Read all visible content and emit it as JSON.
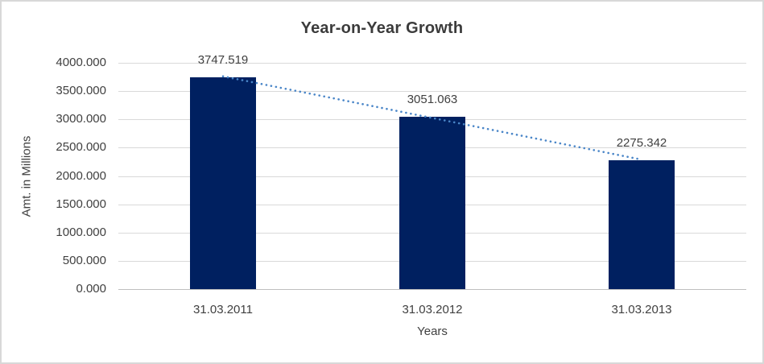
{
  "chart_data": {
    "type": "bar",
    "title": "Year-on-Year Growth",
    "xlabel": "Years",
    "ylabel": "Amt. in Millions",
    "categories": [
      "31.03.2011",
      "31.03.2012",
      "31.03.2013"
    ],
    "values": [
      3747.519,
      3051.063,
      2275.342
    ],
    "data_labels": [
      "3747.519",
      "3051.063",
      "2275.342"
    ],
    "ylim": [
      0,
      4000
    ],
    "ytick_step": 500,
    "ytick_labels": [
      "0.000",
      "500.000",
      "1000.000",
      "1500.000",
      "2000.000",
      "2500.000",
      "3000.000",
      "3500.000",
      "4000.000"
    ],
    "grid": true,
    "legend": "none",
    "bar_color": "#002060",
    "trendline": {
      "type": "linear",
      "style": "dotted",
      "color": "#4A86C8"
    }
  },
  "colors": {
    "gridline": "#D9D9D9",
    "axis_line": "#BFBFBF",
    "text": "#404040",
    "title_text": "#3B3B3B",
    "background": "#FFFFFF",
    "border": "#D8D8D8"
  }
}
